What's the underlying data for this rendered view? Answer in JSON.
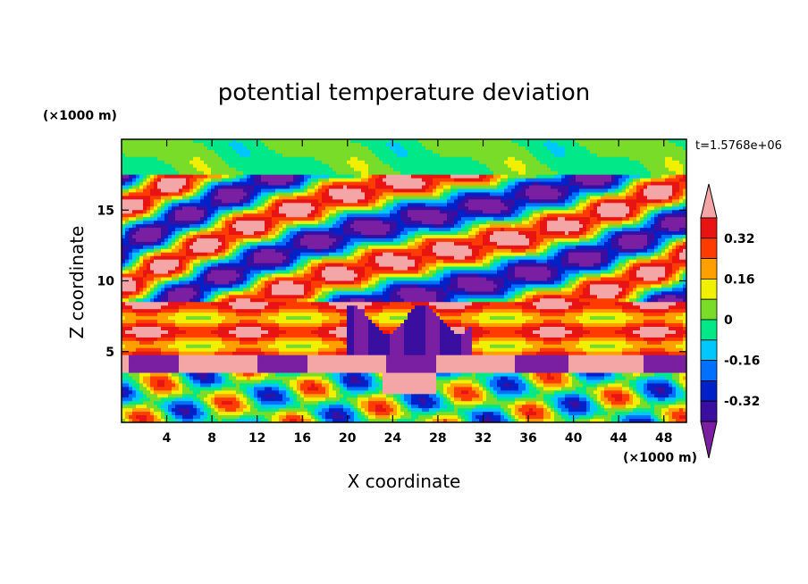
{
  "chart_data": {
    "type": "heatmap",
    "title": "potential temperature deviation",
    "xlabel": "X coordinate",
    "ylabel": "Z coordinate",
    "x_unit": "(×1000 m)",
    "y_unit": "(×1000 m)",
    "time_label": "t=1.5768e+06",
    "xlim": [
      0,
      50
    ],
    "ylim": [
      0,
      20
    ],
    "x_ticks": [
      4,
      8,
      12,
      16,
      20,
      24,
      28,
      32,
      36,
      40,
      44,
      48
    ],
    "x_tick_labels": [
      "4",
      "8",
      "12",
      "16",
      "20",
      "24",
      "28",
      "32",
      "36",
      "40",
      "44",
      "48"
    ],
    "y_ticks": [
      5,
      10,
      15
    ],
    "y_tick_labels": [
      "5",
      "10",
      "15"
    ],
    "colorbar": {
      "levels": [
        -0.4,
        -0.32,
        -0.24,
        -0.16,
        -0.08,
        0,
        0.08,
        0.16,
        0.24,
        0.32,
        0.4
      ],
      "colors": [
        "#7a1fa2",
        "#3a0fa0",
        "#0020c8",
        "#0070ff",
        "#00c8ff",
        "#00e888",
        "#78dc28",
        "#f0f000",
        "#ffa000",
        "#ff3c00",
        "#e81414",
        "#f4a6a6"
      ],
      "labels": [
        "0.32",
        "0.16",
        "0",
        "-0.16",
        "-0.32"
      ],
      "label_values": [
        0.32,
        0.16,
        0,
        -0.16,
        -0.32
      ],
      "extend": "both"
    }
  }
}
